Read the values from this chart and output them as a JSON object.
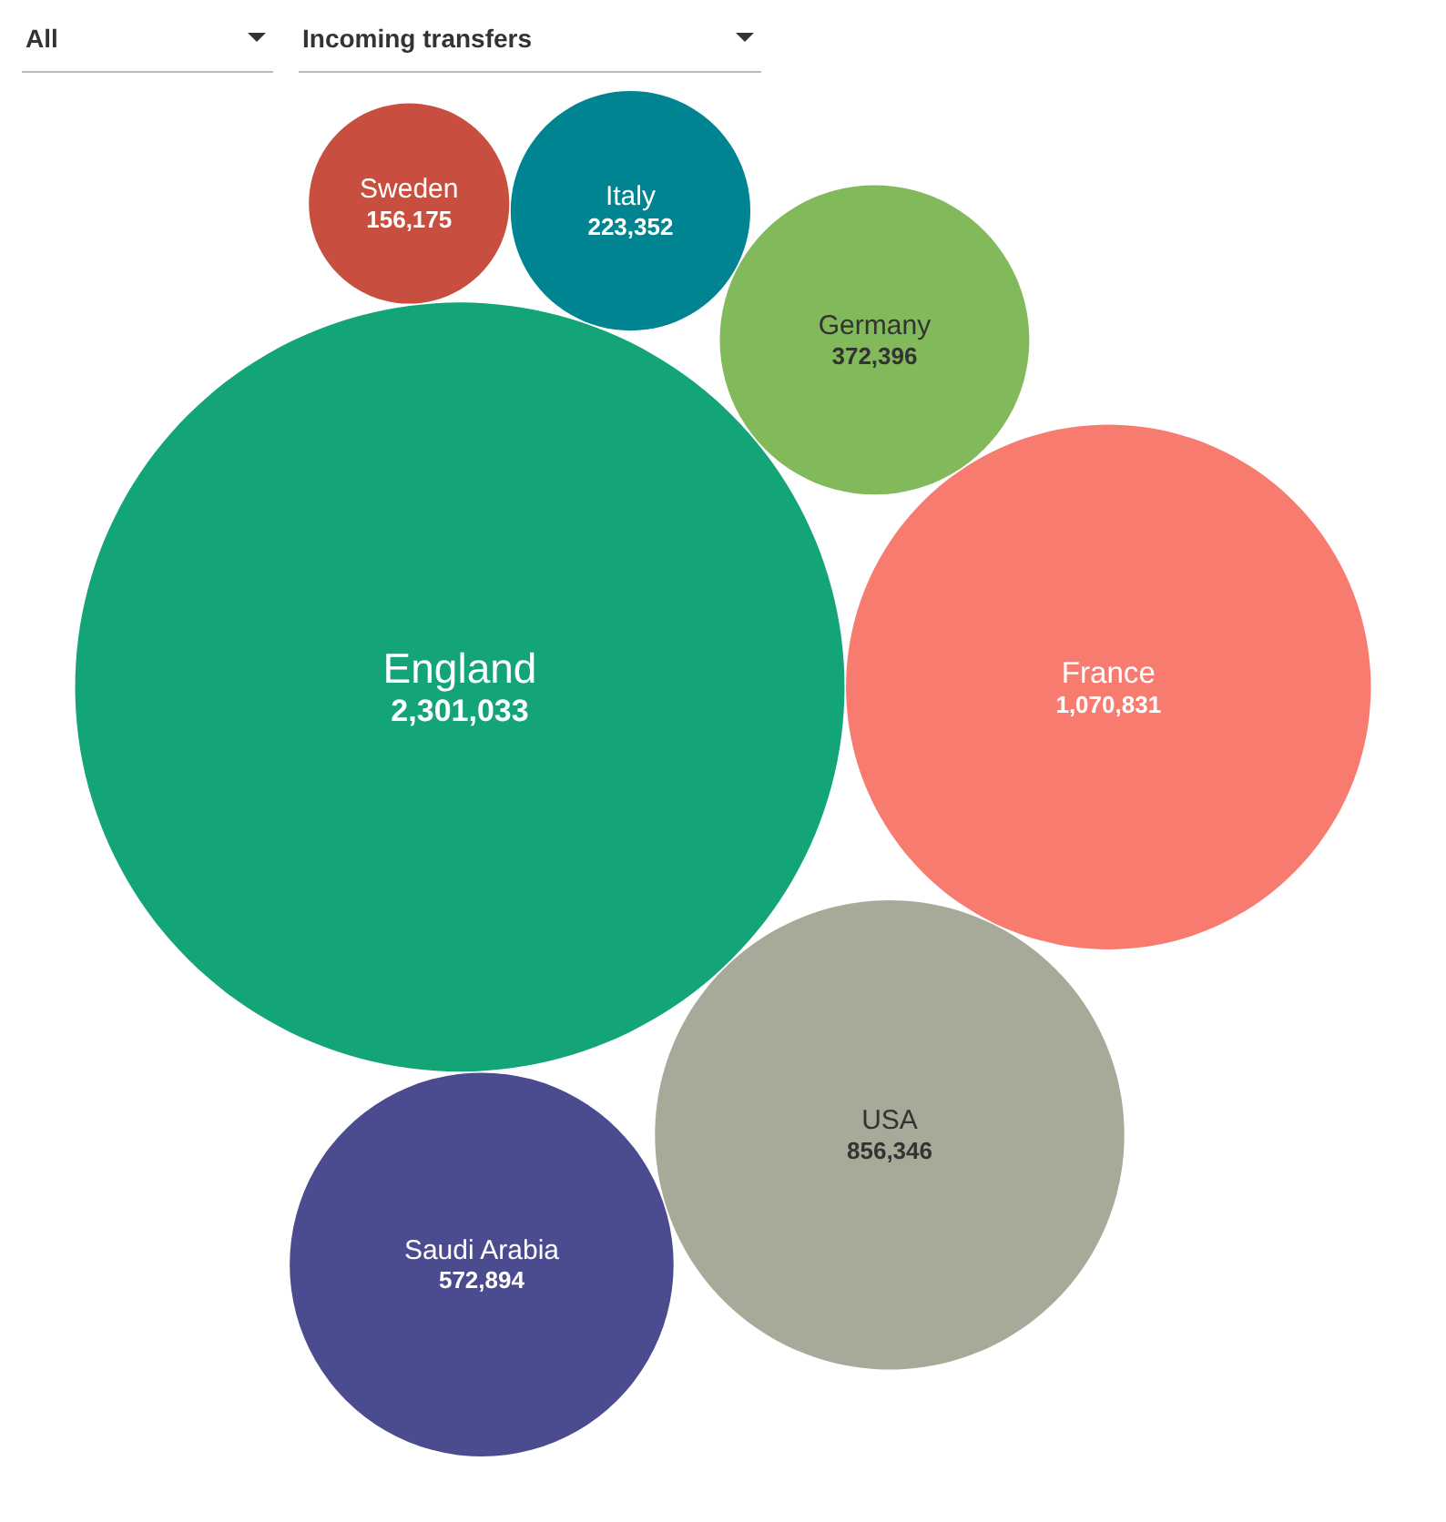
{
  "chart_data": {
    "type": "other",
    "annotations": [
      "All",
      "Incoming transfers"
    ],
    "categories": [
      "Germany",
      "Saudi Arabia",
      "Sweden",
      "England",
      "France",
      "USA",
      "Italy"
    ],
    "values": [
      372396,
      572894,
      156175,
      2301033,
      1070831,
      856346,
      223352
    ],
    "colors": [
      "#82b95b",
      "#4b4b8f",
      "#c84f3f",
      "#13a478",
      "#f87b70",
      "#a7aa99",
      "#008491"
    ],
    "value_labels": [
      "372,396",
      "572,894",
      "156,175",
      "2,301,033",
      "1,070,831",
      "856,346",
      "223,352"
    ]
  }
}
